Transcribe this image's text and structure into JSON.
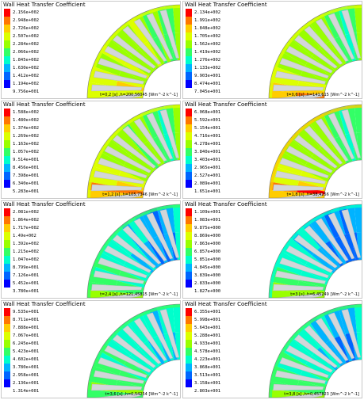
{
  "colormap": [
    "#0000ff",
    "#0066ff",
    "#00b3ff",
    "#00ffcc",
    "#33ff66",
    "#99ff00",
    "#ddff00",
    "#ffcc00",
    "#ff7700",
    "#ff0000"
  ],
  "blade_color": "#d3d6d9",
  "panels": [
    {
      "title": "Wall Heat Transfer Coefficient",
      "ticks": [
        "2.156e+002",
        "2.948e+002",
        "2.726e+002",
        "2.507e+002",
        "2.284e+002",
        "2.066e+002",
        "1.845e+002",
        "1.630e+002",
        "1.412e+002",
        "1.194e+002",
        "9.756e+001"
      ],
      "footer": "t=0,2 [s] ,h=200,56045 [Wm^-2 k^-1]",
      "field": [
        0.55,
        0.45,
        0.4,
        0.5,
        0.45,
        0.5,
        0.6,
        0.5,
        0.55,
        0.5,
        0.55,
        0.6,
        0.5,
        0.55,
        0.6,
        0.7,
        0.65,
        0.6
      ]
    },
    {
      "title": "Wall Heat Transfer Coefficient",
      "ticks": [
        "2.134e+002",
        "1.991e+002",
        "1.848e+002",
        "1.705e+002",
        "1.562e+002",
        "1.419e+002",
        "1.276e+002",
        "1.133e+002",
        "9.903e+001",
        "8.474e+001",
        "7.045e+001"
      ],
      "footer": "t=0,6 [s] ,h=141,615 [Wm^-2 k^-1]",
      "field": [
        0.5,
        0.4,
        0.35,
        0.45,
        0.45,
        0.5,
        0.55,
        0.5,
        0.5,
        0.5,
        0.55,
        0.55,
        0.5,
        0.55,
        0.6,
        0.65,
        0.75,
        0.8
      ]
    },
    {
      "title": "Wall Heat Transfer Coefficient",
      "ticks": [
        "1.588e+002",
        "1.480e+002",
        "1.374e+002",
        "1.269e+002",
        "1.163e+002",
        "1.057e+002",
        "9.514e+001",
        "8.456e+001",
        "7.398e+001",
        "6.340e+001",
        "5.283e+001"
      ],
      "footer": "t=1,2 [s] ,h=105,7346 [Wm^-2 k^-1]",
      "field": [
        0.5,
        0.4,
        0.35,
        0.45,
        0.4,
        0.5,
        0.55,
        0.45,
        0.5,
        0.5,
        0.55,
        0.55,
        0.5,
        0.6,
        0.65,
        0.7,
        0.85,
        0.75
      ]
    },
    {
      "title": "Wall Heat Transfer Coefficient",
      "ticks": [
        "6.068e+001",
        "5.592e+001",
        "5.154e+001",
        "4.716e+001",
        "4.278e+001",
        "3.840e+001",
        "3.403e+001",
        "2.965e+001",
        "2.527e+001",
        "2.089e+001",
        "1.651e+001"
      ],
      "footer": "t=1,8 [s] ,h=38,4256 [Wm^-2 k^-1]",
      "field": [
        0.45,
        0.4,
        0.35,
        0.4,
        0.45,
        0.5,
        0.5,
        0.5,
        0.5,
        0.55,
        0.55,
        0.5,
        0.55,
        0.6,
        0.65,
        0.7,
        0.9,
        0.75
      ]
    },
    {
      "title": "Wall Heat Transfer Coefficient",
      "ticks": [
        "2.081e+002",
        "1.864e+002",
        "1.717e+002",
        "1.49e+002",
        "1.392e+002",
        "1.215e+002",
        "1.047e+002",
        "8.799e+001",
        "7.126e+001",
        "5.452e+001",
        "3.780e+001"
      ],
      "footer": "t=2,4 [s] ,h=121,45815 [Wm^-2 k^-1]",
      "field": [
        0.3,
        0.15,
        0.2,
        0.1,
        0.2,
        0.15,
        0.25,
        0.2,
        0.3,
        0.25,
        0.3,
        0.35,
        0.3,
        0.4,
        0.35,
        0.45,
        0.4,
        0.5
      ]
    },
    {
      "title": "Wall Heat Transfer Coefficient",
      "ticks": [
        "1.109e+001",
        "1.083e+001",
        "9.875e+000",
        "8.869e+000",
        "7.863e+000",
        "6.857e+000",
        "5.851e+000",
        "4.845e+000",
        "3.839e+000",
        "2.833e+000",
        "1.827e+000"
      ],
      "footer": "t=3 [s] ,h=6,45249 [Wm^-2 k^-1]",
      "field": [
        0.2,
        0.15,
        0.1,
        0.15,
        0.1,
        0.2,
        0.15,
        0.2,
        0.25,
        0.2,
        0.3,
        0.3,
        0.35,
        0.35,
        0.4,
        0.45,
        0.5,
        0.55
      ]
    },
    {
      "title": "Wall Heat Transfer Coefficient",
      "ticks": [
        "9.535e+001",
        "8.711e+001",
        "7.888e+001",
        "7.067e+001",
        "6.245e+001",
        "5.423e+001",
        "4.602e+001",
        "3.780e+001",
        "2.958e+001",
        "2.136e+001",
        "1.314e+001"
      ],
      "footer": "t=3,6 [s] ,h=0,54254 [Wm^-2 k^-1]",
      "field": [
        0.35,
        0.25,
        0.3,
        0.2,
        0.3,
        0.25,
        0.35,
        0.3,
        0.35,
        0.3,
        0.35,
        0.4,
        0.35,
        0.4,
        0.45,
        0.4,
        0.5,
        0.45
      ]
    },
    {
      "title": "Wall Heat Transfer Coefficient",
      "ticks": [
        "6.355e+001",
        "5.998e+001",
        "5.643e+001",
        "5.288e+001",
        "4.933e+001",
        "4.578e+001",
        "4.223e+001",
        "3.868e+001",
        "3.513e+001",
        "3.158e+001",
        "2.803e+001"
      ],
      "footer": "t=3,8 [s] ,h=0,457823 [Wm^-2 k^-1]",
      "field": [
        0.3,
        0.2,
        0.15,
        0.2,
        0.15,
        0.25,
        0.2,
        0.3,
        0.25,
        0.3,
        0.35,
        0.3,
        0.4,
        0.35,
        0.4,
        0.45,
        0.4,
        0.5
      ]
    }
  ]
}
